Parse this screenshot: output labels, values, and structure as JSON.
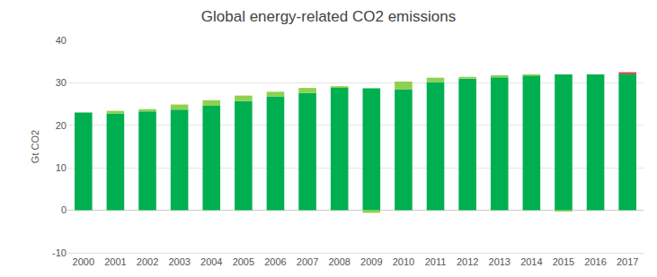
{
  "chart_data": {
    "type": "bar",
    "title": "Global energy-related CO2 emissions",
    "y_label": "Gt CO2",
    "categories": [
      "2000",
      "2001",
      "2002",
      "2003",
      "2004",
      "2005",
      "2006",
      "2007",
      "2008",
      "2009",
      "2010",
      "2011",
      "2012",
      "2013",
      "2014",
      "2015",
      "2016",
      "2017"
    ],
    "series": [
      {
        "color": "#00b050",
        "values": [
          23.0,
          22.8,
          23.3,
          23.7,
          24.6,
          25.7,
          26.8,
          27.6,
          28.8,
          28.7,
          28.5,
          30.2,
          31.0,
          31.3,
          31.7,
          32.0,
          32.0,
          32.0
        ]
      },
      {
        "color": "#8fd14f",
        "values": [
          null,
          0.6,
          0.5,
          1.2,
          1.3,
          1.3,
          1.1,
          1.2,
          0.4,
          -0.6,
          1.8,
          1.0,
          0.4,
          0.5,
          0.3,
          -0.3,
          null,
          null
        ]
      },
      {
        "color": "#c0504d",
        "values": [
          null,
          null,
          null,
          null,
          null,
          null,
          null,
          null,
          null,
          null,
          null,
          null,
          null,
          null,
          null,
          null,
          null,
          0.5
        ]
      }
    ],
    "stacked": true,
    "ylim": [
      -10,
      40
    ],
    "yticks": [
      -10,
      0,
      10,
      20,
      30,
      40
    ],
    "grid": true
  }
}
